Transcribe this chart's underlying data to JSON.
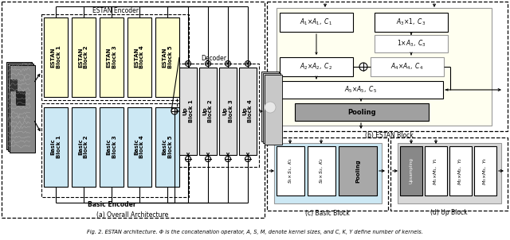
{
  "title": "Fig. 2. ESTAN architecture. Φ is the concatenation operator, A, S, M, denote kernel sizes, and C, K, Y define number of kernels.",
  "bg_color": "#ffffff",
  "estan_blocks": [
    "ESTAN\nBlock 1",
    "ESTAN\nBlock 2",
    "ESTAN\nBlock 3",
    "ESTAN\nBlock 4",
    "ESTAN\nBlock 5"
  ],
  "basic_blocks": [
    "Basic\nBlock 1",
    "Basic\nBlock 2",
    "Basic\nBlock 3",
    "Basic\nBlock 4",
    "Basic\nBlock 5"
  ],
  "up_blocks": [
    "Up\nBlock 1",
    "Up\nBlock 2",
    "Up\nBlock 3",
    "Up\nBlock 4"
  ],
  "label_a": "(a) Overall Architecture",
  "label_b": "(b) ESTAN Block",
  "label_c": "(c) Basic Block",
  "label_d": "(d) Up Block",
  "estan_encoder": "ESTAN Encoder",
  "basic_encoder": "Basic Encoder",
  "decoder": "Decoder"
}
